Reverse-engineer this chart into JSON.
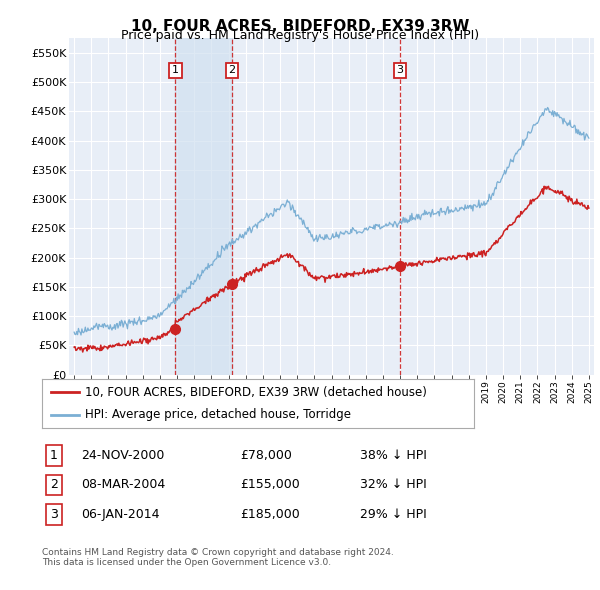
{
  "title": "10, FOUR ACRES, BIDEFORD, EX39 3RW",
  "subtitle": "Price paid vs. HM Land Registry's House Price Index (HPI)",
  "ylim": [
    0,
    575000
  ],
  "yticks": [
    0,
    50000,
    100000,
    150000,
    200000,
    250000,
    300000,
    350000,
    400000,
    450000,
    500000,
    550000
  ],
  "ytick_labels": [
    "£0",
    "£50K",
    "£100K",
    "£150K",
    "£200K",
    "£250K",
    "£300K",
    "£350K",
    "£400K",
    "£450K",
    "£500K",
    "£550K"
  ],
  "background_color": "#ffffff",
  "plot_bg_color": "#e8eef7",
  "grid_color": "#ffffff",
  "red_line_color": "#cc2222",
  "blue_line_color": "#7bafd4",
  "shade_color": "#d0e0f0",
  "vline_color": "#cc2222",
  "transactions": [
    {
      "label": "1",
      "x": 2000.9,
      "price": 78000
    },
    {
      "label": "2",
      "x": 2004.2,
      "price": 155000
    },
    {
      "label": "3",
      "x": 2014.0,
      "price": 185000
    }
  ],
  "shade_regions": [
    [
      2000.9,
      2004.2
    ]
  ],
  "legend_entries": [
    "10, FOUR ACRES, BIDEFORD, EX39 3RW (detached house)",
    "HPI: Average price, detached house, Torridge"
  ],
  "table_rows": [
    [
      "1",
      "24-NOV-2000",
      "£78,000",
      "38% ↓ HPI"
    ],
    [
      "2",
      "08-MAR-2004",
      "£155,000",
      "32% ↓ HPI"
    ],
    [
      "3",
      "06-JAN-2014",
      "£185,000",
      "29% ↓ HPI"
    ]
  ],
  "footer": "Contains HM Land Registry data © Crown copyright and database right 2024.\nThis data is licensed under the Open Government Licence v3.0.",
  "title_fontsize": 11,
  "subtitle_fontsize": 9,
  "tick_fontsize": 8,
  "legend_fontsize": 8.5,
  "table_fontsize": 9
}
